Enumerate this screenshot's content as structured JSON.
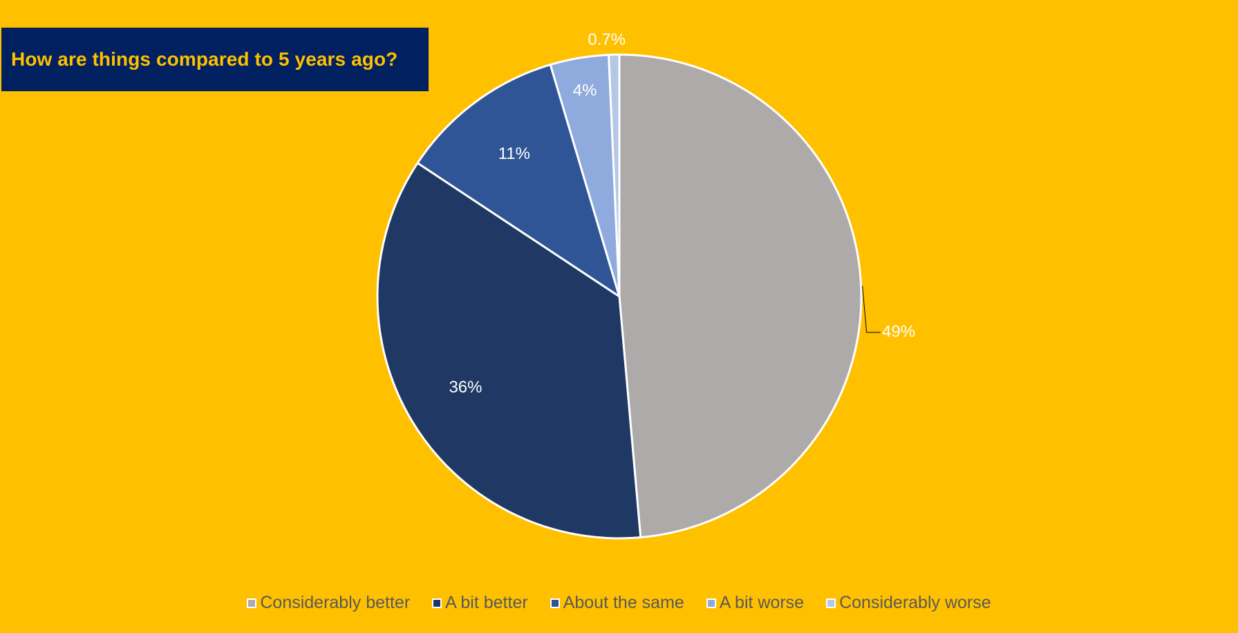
{
  "chart_data": {
    "type": "pie",
    "title": "How are things compared to 5 years ago?",
    "start_angle_deg": 0,
    "direction": "clockwise",
    "slices": [
      {
        "name": "Considerably better",
        "value": 48.6,
        "label": "49%",
        "color": "#aeaaaa"
      },
      {
        "name": "A bit better",
        "value": 35.7,
        "label": "36%",
        "color": "#203864"
      },
      {
        "name": "About the same",
        "value": 11.1,
        "label": "11%",
        "color": "#2f5597"
      },
      {
        "name": "A bit worse",
        "value": 3.9,
        "label": "4%",
        "color": "#8faadc"
      },
      {
        "name": "Considerably worse",
        "value": 0.7,
        "label": "0.7%",
        "color": "#b4c7e7"
      }
    ],
    "legend_position": "bottom"
  },
  "colors": {
    "background": "#ffc000",
    "title_box": "#002060",
    "title_text": "#ffc000",
    "slice_border": "#ffffff",
    "legend_text": "#595959"
  }
}
